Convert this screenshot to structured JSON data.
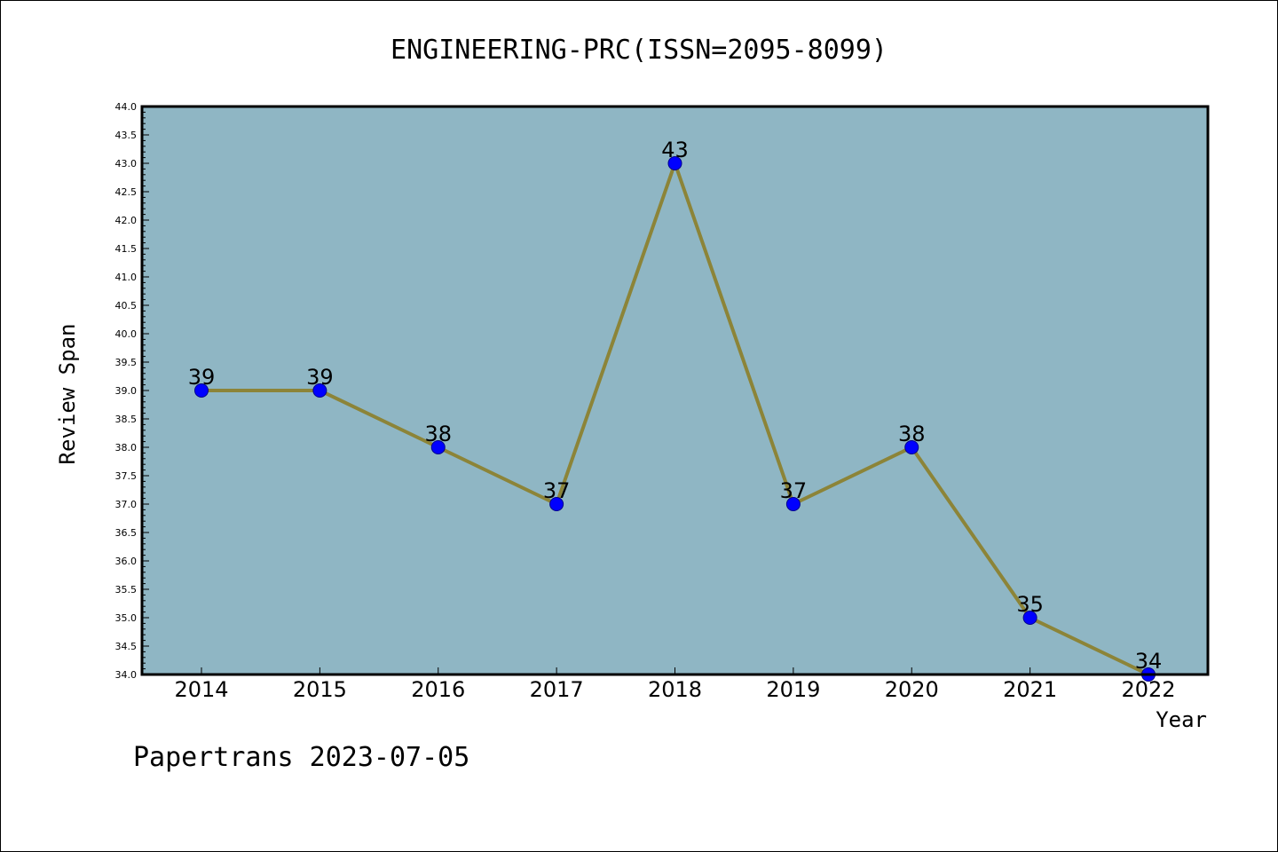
{
  "chart_data": {
    "type": "line",
    "title": "ENGINEERING-PRC(ISSN=2095-8099)",
    "xlabel": "Year",
    "ylabel": "Review Span",
    "categories": [
      "2014",
      "2015",
      "2016",
      "2017",
      "2018",
      "2019",
      "2020",
      "2021",
      "2022"
    ],
    "values": [
      39,
      39,
      38,
      37,
      43,
      37,
      38,
      35,
      34
    ],
    "data_labels": [
      "39",
      "39",
      "38",
      "37",
      "43",
      "37",
      "38",
      "35",
      "34"
    ],
    "ylim": [
      34.0,
      44.0
    ],
    "ytick_labels": [
      "34.0",
      "34.5",
      "35.0",
      "35.5",
      "36.0",
      "36.5",
      "37.0",
      "37.5",
      "38.0",
      "38.5",
      "39.0",
      "39.5",
      "40.0",
      "40.5",
      "41.0",
      "41.5",
      "42.0",
      "42.5",
      "43.0",
      "43.5",
      "44.0"
    ],
    "grid": false,
    "legend": "none",
    "colors": {
      "plot_background": "#8fb6c4",
      "line": "#8c8438",
      "marker_fill": "#0000ff",
      "marker_edge": "#00008b"
    }
  },
  "footer": {
    "text": "Papertrans 2023-07-05"
  }
}
